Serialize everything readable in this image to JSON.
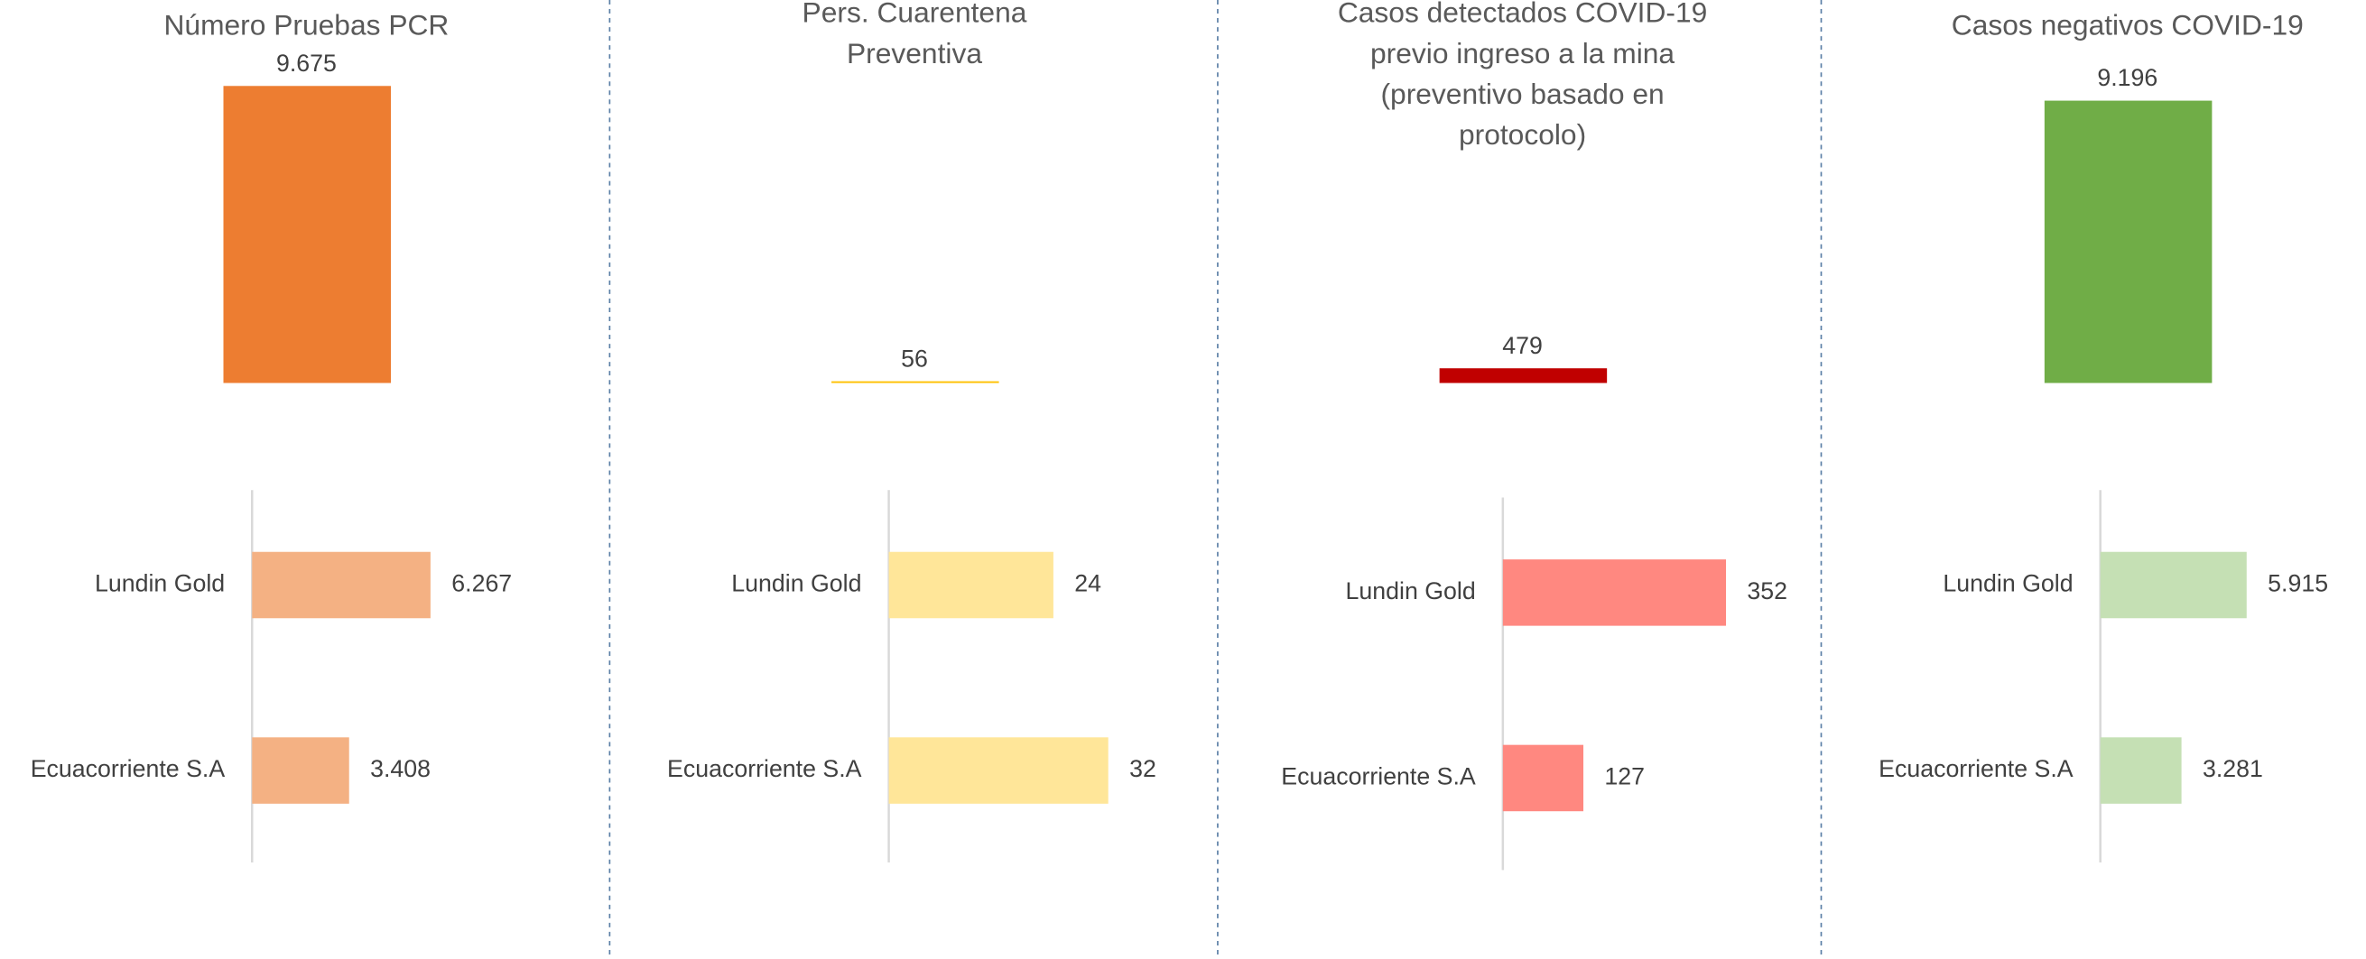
{
  "chart_data": [
    {
      "type": "bar",
      "title": "Número Pruebas PCR",
      "values": [
        9675
      ],
      "value_labels": [
        "9.675"
      ],
      "color": "#ed7d31",
      "ylim": [
        0,
        9675
      ]
    },
    {
      "type": "barh",
      "categories": [
        "Lundin Gold",
        "Ecuacorriente S.A"
      ],
      "values": [
        6267,
        3408
      ],
      "value_labels": [
        "6.267",
        "3.408"
      ],
      "color": "#f4b183",
      "xlim": [
        0,
        10600
      ]
    },
    {
      "type": "bar",
      "title": "Pers. Cuarentena Preventiva",
      "values": [
        56
      ],
      "color": "#ffc000",
      "ylim": [
        0,
        9675
      ]
    },
    {
      "type": "barh",
      "categories": [
        "Lundin Gold",
        "Ecuacorriente S.A"
      ],
      "values": [
        24,
        32
      ],
      "color": "#ffe699",
      "xlim": [
        0,
        44
      ]
    },
    {
      "type": "bar",
      "title": "Casos detectados COVID-19 previo ingreso a la mina (preventivo basado en protocolo)",
      "values": [
        479
      ],
      "color": "#c00000",
      "ylim": [
        0,
        9675
      ]
    },
    {
      "type": "barh",
      "categories": [
        "Lundin Gold",
        "Ecuacorriente S.A"
      ],
      "values": [
        352,
        127
      ],
      "color": "#ff8880",
      "xlim": [
        0,
        476
      ]
    },
    {
      "type": "bar",
      "title": "Casos negativos COVID-19",
      "values": [
        9196
      ],
      "value_labels": [
        "9.196"
      ],
      "color": "#70ad47",
      "ylim": [
        0,
        9675
      ]
    },
    {
      "type": "barh",
      "categories": [
        "Lundin Gold",
        "Ecuacorriente S.A"
      ],
      "values": [
        5915,
        3281
      ],
      "value_labels": [
        "5.915",
        "3.281"
      ],
      "color": "#c5e0b4",
      "xlim": [
        0,
        12200
      ]
    }
  ]
}
